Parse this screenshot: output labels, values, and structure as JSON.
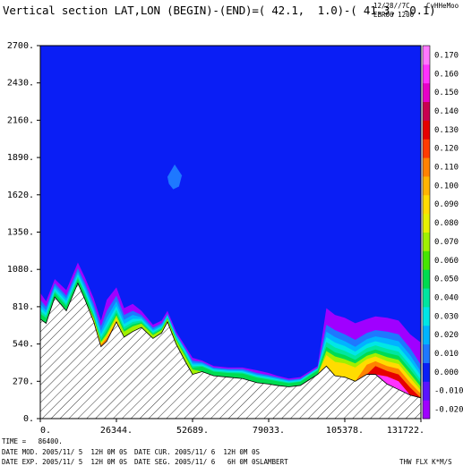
{
  "header": {
    "title": "Vertical section LAT,LON (BEGIN)-(END)=( 42.1,  1.0)-( 41.3, -0.1)",
    "date_code": "12/28//7C",
    "run_code": "EBR06 1200",
    "unit_code": "CvHHeMoo"
  },
  "footer": {
    "time_label": "TIME =   86400.",
    "date_mod": "DATE MOD. 2005/11/ 5  12H 0M 0S",
    "date_cur": "DATE CUR. 2005/11/ 6  12H 0M 0S",
    "date_exp": "DATE EXP. 2005/11/ 5  12H 0M 0S",
    "date_seg": "DATE SEG. 2005/11/ 6   6H 0M 0S",
    "projection": "LAMBERT",
    "field_label": "THW FLX K*M/S"
  },
  "colors": {
    "background": "#0a1ef5",
    "terrain_hatch": "#000000"
  },
  "chart_data": {
    "type": "heatmap",
    "title": "Vertical section LAT,LON (BEGIN)-(END)=( 42.1,  1.0)-( 41.3, -0.1)",
    "xlabel": "",
    "ylabel": "",
    "xlim": [
      0,
      131722
    ],
    "ylim": [
      0,
      2700
    ],
    "x_ticks": [
      0,
      26344,
      52689,
      79033,
      105378,
      131722
    ],
    "x_tick_labels": [
      "0.",
      "26344.",
      "52689.",
      "79033.",
      "105378.",
      "131722."
    ],
    "y_ticks": [
      0,
      270,
      540,
      810,
      1080,
      1350,
      1620,
      1890,
      2160,
      2430,
      2700
    ],
    "y_tick_labels": [
      "0.",
      "270.",
      "540.",
      "810.",
      "1080.",
      "1350.",
      "1620.",
      "1890.",
      "2160.",
      "2430.",
      "2700."
    ],
    "colorbar": {
      "levels": [
        -0.02,
        -0.01,
        0.0,
        0.01,
        0.02,
        0.03,
        0.04,
        0.05,
        0.06,
        0.07,
        0.08,
        0.09,
        0.1,
        0.11,
        0.12,
        0.13,
        0.14,
        0.15,
        0.16,
        0.17
      ],
      "labels": [
        "-0.020",
        "-0.010",
        "0.000",
        "0.010",
        "0.020",
        "0.030",
        "0.040",
        "0.050",
        "0.060",
        "0.070",
        "0.080",
        "0.090",
        "0.100",
        "0.110",
        "0.120",
        "0.130",
        "0.140",
        "0.150",
        "0.160",
        "0.170"
      ],
      "colors": [
        "#a000ff",
        "#5a14ff",
        "#0a1ef5",
        "#1e78ff",
        "#00b4ff",
        "#00e6e6",
        "#00e6a0",
        "#00dc50",
        "#46e600",
        "#a0f000",
        "#e6f000",
        "#ffdc00",
        "#ffb400",
        "#ff8200",
        "#ff3c00",
        "#e60000",
        "#c80050",
        "#e600c8",
        "#ff32ff",
        "#ff78ff"
      ]
    },
    "terrain": {
      "x": [
        0,
        2000,
        5000,
        9000,
        13000,
        15500,
        18500,
        21000,
        23000,
        26344,
        29000,
        32000,
        35000,
        39000,
        42000,
        44000,
        47000,
        50000,
        52689,
        56000,
        60000,
        65000,
        70000,
        75000,
        79033,
        82000,
        86000,
        90000,
        93000,
        96000,
        99000,
        102000,
        105378,
        109000,
        113000,
        116000,
        120000,
        124000,
        128000,
        131722
      ],
      "y": [
        720,
        690,
        880,
        780,
        980,
        860,
        700,
        520,
        560,
        700,
        590,
        630,
        660,
        580,
        620,
        700,
        540,
        420,
        320,
        340,
        310,
        300,
        290,
        260,
        250,
        240,
        230,
        240,
        280,
        320,
        380,
        310,
        300,
        270,
        320,
        320,
        250,
        210,
        170,
        150
      ]
    },
    "bands": [
      {
        "value": 0.0,
        "color": "#0a1ef5",
        "offsets": [
          0,
          0,
          0,
          0,
          0,
          0,
          0,
          0,
          0,
          0,
          0,
          0,
          0,
          0,
          0,
          0,
          0,
          0,
          0,
          0,
          0,
          0,
          0,
          0,
          0,
          0,
          0,
          0,
          0,
          0,
          0,
          0,
          0,
          0,
          0,
          0,
          0,
          0,
          0,
          0
        ]
      },
      {
        "value": -0.02,
        "color": "#a000ff",
        "offsets": [
          190,
          160,
          130,
          150,
          150,
          160,
          170,
          190,
          300,
          250,
          210,
          200,
          120,
          100,
          90,
          80,
          90,
          110,
          120,
          80,
          70,
          70,
          80,
          90,
          80,
          70,
          60,
          60,
          60,
          60,
          420,
          440,
          430,
          420,
          400,
          420,
          480,
          500,
          440,
          400
        ]
      },
      {
        "value": 0.01,
        "color": "#1e78ff",
        "offsets": [
          140,
          120,
          100,
          110,
          110,
          120,
          130,
          150,
          220,
          190,
          160,
          150,
          90,
          80,
          70,
          60,
          75,
          95,
          100,
          70,
          60,
          60,
          70,
          70,
          65,
          60,
          50,
          50,
          50,
          50,
          300,
          330,
          310,
          300,
          300,
          320,
          380,
          400,
          340,
          240
        ]
      },
      {
        "value": 0.02,
        "color": "#00b4ff",
        "offsets": [
          110,
          95,
          80,
          90,
          85,
          95,
          100,
          115,
          170,
          150,
          125,
          120,
          75,
          65,
          58,
          50,
          65,
          85,
          85,
          60,
          52,
          52,
          60,
          60,
          55,
          52,
          44,
          44,
          45,
          45,
          250,
          280,
          260,
          250,
          255,
          275,
          330,
          350,
          290,
          190
        ]
      },
      {
        "value": 0.03,
        "color": "#00e6e6",
        "offsets": [
          85,
          75,
          62,
          70,
          65,
          72,
          78,
          90,
          130,
          115,
          95,
          92,
          62,
          54,
          48,
          42,
          55,
          75,
          72,
          52,
          45,
          45,
          52,
          52,
          48,
          45,
          38,
          38,
          40,
          40,
          210,
          240,
          225,
          215,
          220,
          240,
          290,
          310,
          250,
          160
        ]
      },
      {
        "value": 0.04,
        "color": "#00e6a0",
        "offsets": [
          60,
          55,
          45,
          50,
          48,
          55,
          58,
          68,
          100,
          88,
          72,
          70,
          50,
          44,
          40,
          34,
          46,
          62,
          60,
          44,
          38,
          38,
          44,
          44,
          40,
          38,
          32,
          32,
          35,
          35,
          175,
          205,
          190,
          185,
          190,
          210,
          255,
          275,
          215,
          130
        ]
      },
      {
        "value": 0.05,
        "color": "#00dc50",
        "offsets": [
          40,
          38,
          30,
          34,
          32,
          38,
          42,
          50,
          75,
          66,
          54,
          52,
          38,
          34,
          30,
          26,
          36,
          50,
          48,
          36,
          30,
          30,
          36,
          36,
          32,
          30,
          26,
          26,
          28,
          28,
          140,
          170,
          160,
          155,
          160,
          180,
          225,
          245,
          185,
          105
        ]
      },
      {
        "value": 0.06,
        "color": "#a0f000",
        "offsets": [
          0,
          0,
          0,
          0,
          0,
          0,
          28,
          36,
          55,
          48,
          40,
          38,
          28,
          25,
          22,
          20,
          28,
          38,
          36,
          0,
          0,
          0,
          0,
          0,
          0,
          0,
          0,
          0,
          0,
          0,
          110,
          140,
          130,
          130,
          135,
          155,
          195,
          215,
          155,
          80
        ]
      },
      {
        "value": 0.08,
        "color": "#ffdc00",
        "offsets": [
          0,
          0,
          0,
          0,
          0,
          0,
          16,
          24,
          38,
          30,
          0,
          0,
          0,
          0,
          0,
          0,
          0,
          0,
          0,
          0,
          0,
          0,
          0,
          0,
          0,
          0,
          0,
          0,
          0,
          0,
          80,
          100,
          100,
          100,
          110,
          130,
          165,
          185,
          125,
          55
        ]
      },
      {
        "value": 0.1,
        "color": "#ff8200",
        "offsets": [
          0,
          0,
          0,
          0,
          0,
          0,
          0,
          14,
          24,
          0,
          0,
          0,
          0,
          0,
          0,
          0,
          0,
          0,
          0,
          0,
          0,
          0,
          0,
          0,
          0,
          0,
          0,
          0,
          0,
          0,
          0,
          0,
          0,
          0,
          70,
          95,
          130,
          150,
          90,
          30
        ]
      },
      {
        "value": 0.13,
        "color": "#e60000",
        "offsets": [
          0,
          0,
          0,
          0,
          0,
          0,
          0,
          0,
          0,
          0,
          0,
          0,
          0,
          0,
          0,
          0,
          0,
          0,
          0,
          0,
          0,
          0,
          0,
          0,
          0,
          0,
          0,
          0,
          0,
          0,
          0,
          0,
          0,
          0,
          0,
          60,
          95,
          110,
          55,
          0
        ]
      },
      {
        "value": 0.16,
        "color": "#ff32ff",
        "offsets": [
          0,
          0,
          0,
          0,
          0,
          0,
          0,
          0,
          0,
          0,
          0,
          0,
          0,
          0,
          0,
          0,
          0,
          0,
          0,
          0,
          0,
          0,
          0,
          0,
          0,
          0,
          0,
          0,
          0,
          0,
          0,
          0,
          0,
          0,
          0,
          0,
          55,
          60,
          0,
          0
        ]
      }
    ],
    "blob": {
      "x": [
        44000,
        46500,
        49000,
        48000,
        46000,
        44500
      ],
      "y": [
        1750,
        1840,
        1760,
        1680,
        1660,
        1700
      ],
      "color": "#1e78ff"
    }
  }
}
